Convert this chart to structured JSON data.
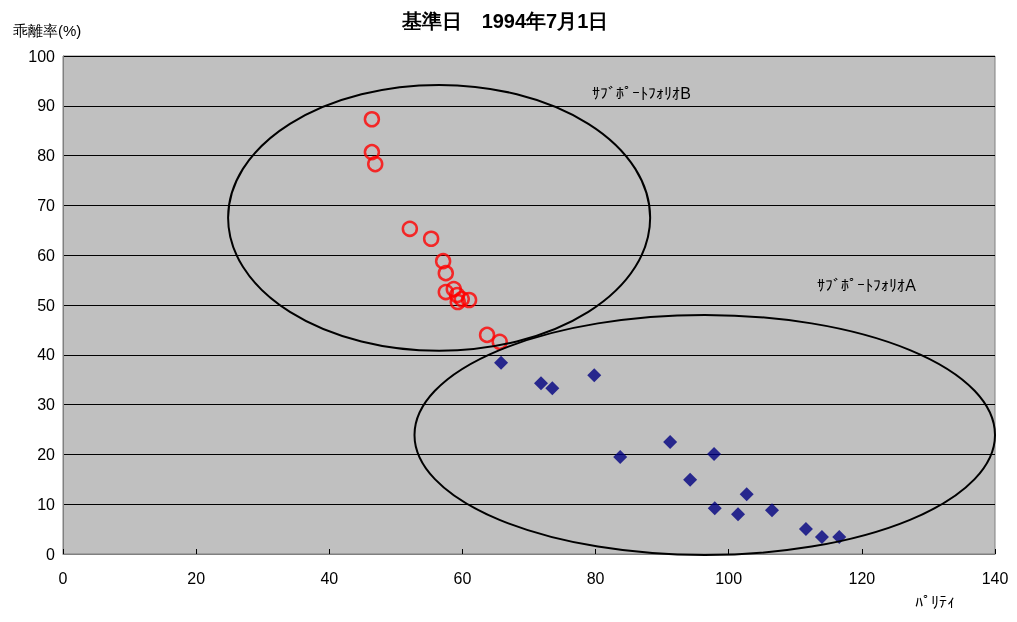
{
  "chart_data": {
    "type": "scatter",
    "title": "基準日　1994年7月1日",
    "ylabel": "乖離率(%)",
    "xlabel": "ﾊﾟﾘﾃｨ",
    "annotations": [
      "ｻﾌﾞﾎﾟｰﾄﾌｫﾘｵB",
      "ｻﾌﾞﾎﾟｰﾄﾌｫﾘｵA"
    ],
    "series": [
      {
        "color": "#ff0000",
        "marker": "circle",
        "x": [
          46.4,
          46.4,
          46.9,
          52.1,
          55.3,
          57.1,
          57.5,
          57.5,
          58.7,
          59.2,
          59.3,
          59.9,
          61.0,
          63.7,
          65.6
        ],
        "values": [
          87.3,
          80.7,
          78.3,
          65.3,
          63.3,
          58.8,
          56.4,
          52.6,
          53.2,
          52.0,
          50.6,
          51.2,
          51.0,
          44.0,
          42.6
        ]
      },
      {
        "color": "#000080",
        "marker": "diamond",
        "x": [
          65.8,
          71.8,
          73.5,
          79.8,
          83.7,
          91.2,
          94.2,
          97.8,
          97.9,
          101.4,
          102.7,
          106.5,
          111.6,
          114.0,
          116.6
        ],
        "values": [
          38.4,
          34.3,
          33.3,
          35.9,
          19.5,
          22.5,
          14.9,
          20.1,
          9.2,
          8.0,
          12.0,
          8.8,
          5.0,
          3.4,
          3.4
        ]
      }
    ],
    "xlim": [
      0,
      140
    ],
    "xticks": [
      0,
      20,
      40,
      60,
      80,
      100,
      120,
      140
    ],
    "ylim": [
      0,
      100
    ],
    "yticks": [
      0,
      10,
      20,
      30,
      40,
      50,
      60,
      70,
      80,
      90,
      100
    ],
    "grid": "y"
  }
}
